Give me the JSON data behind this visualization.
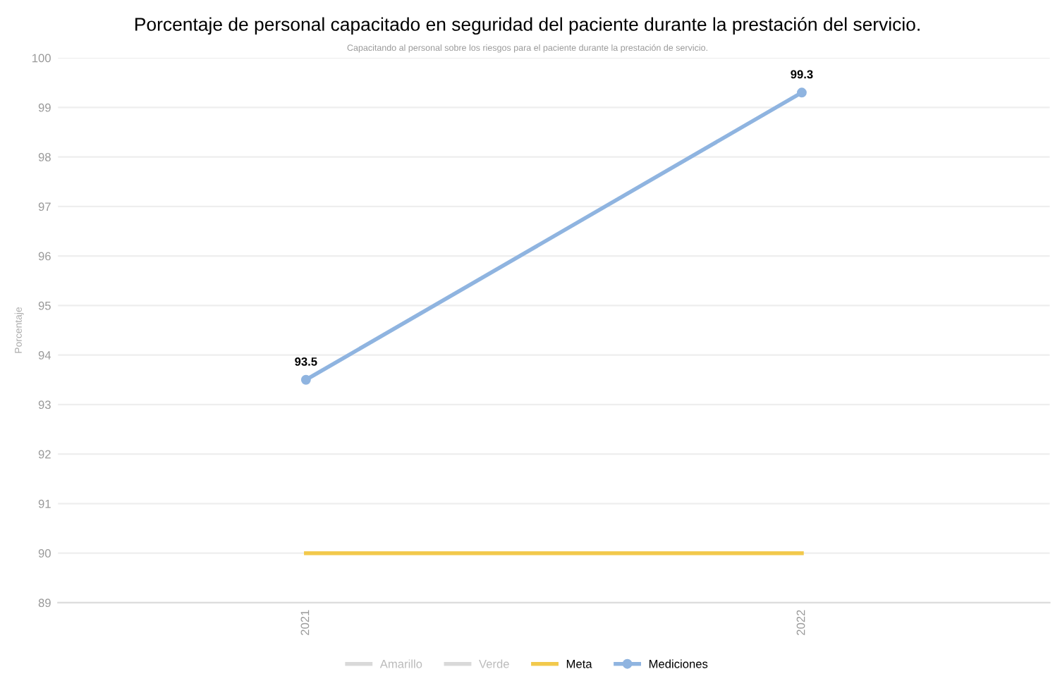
{
  "chart_data": {
    "type": "line",
    "title": "Porcentaje de personal capacitado en seguridad del paciente durante la prestación del servicio.",
    "subtitle": "Capacitando al personal sobre los riesgos para el paciente durante la prestación de servicio.",
    "ylabel": "Porcentaje",
    "categories": [
      "2021",
      "2022"
    ],
    "series": [
      {
        "name": "Amarillo",
        "color": "#d9d9d9",
        "values": [
          null,
          null
        ],
        "marker": "none"
      },
      {
        "name": "Verde",
        "color": "#d9d9d9",
        "values": [
          null,
          null
        ],
        "marker": "none"
      },
      {
        "name": "Meta",
        "color": "#f2c94c",
        "values": [
          90,
          90
        ],
        "marker": "none"
      },
      {
        "name": "Mediciones",
        "color": "#8fb4e0",
        "values": [
          93.5,
          99.3
        ],
        "marker": "circle",
        "value_labels": [
          "93.5",
          "99.3"
        ]
      }
    ],
    "ylim": [
      89,
      100
    ],
    "yticks": [
      89,
      90,
      91,
      92,
      93,
      94,
      95,
      96,
      97,
      98,
      99,
      100
    ],
    "grid": "y",
    "legend": "bottom",
    "line_style": "solid"
  }
}
